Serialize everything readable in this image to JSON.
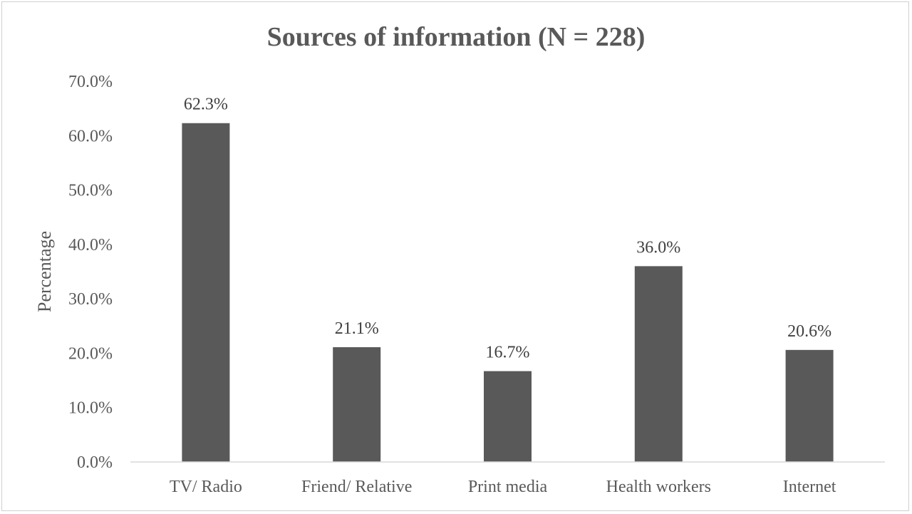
{
  "chart_data": {
    "type": "bar",
    "title": "Sources of information (N = 228)",
    "xlabel": "",
    "ylabel": "Percentage",
    "categories": [
      "TV/ Radio",
      "Friend/ Relative",
      "Print media",
      "Health workers",
      "Internet"
    ],
    "values": [
      62.3,
      21.1,
      16.7,
      36.0,
      20.6
    ],
    "data_labels": [
      "62.3%",
      "21.1%",
      "16.7%",
      "36.0%",
      "20.6%"
    ],
    "ylim": [
      0,
      70
    ],
    "y_ticks": [
      0,
      10,
      20,
      30,
      40,
      50,
      60,
      70
    ],
    "y_tick_labels": [
      "0.0%",
      "10.0%",
      "20.0%",
      "30.0%",
      "40.0%",
      "50.0%",
      "60.0%",
      "70.0%"
    ],
    "grid": false,
    "legend": "none",
    "bar_color": "#595959"
  }
}
